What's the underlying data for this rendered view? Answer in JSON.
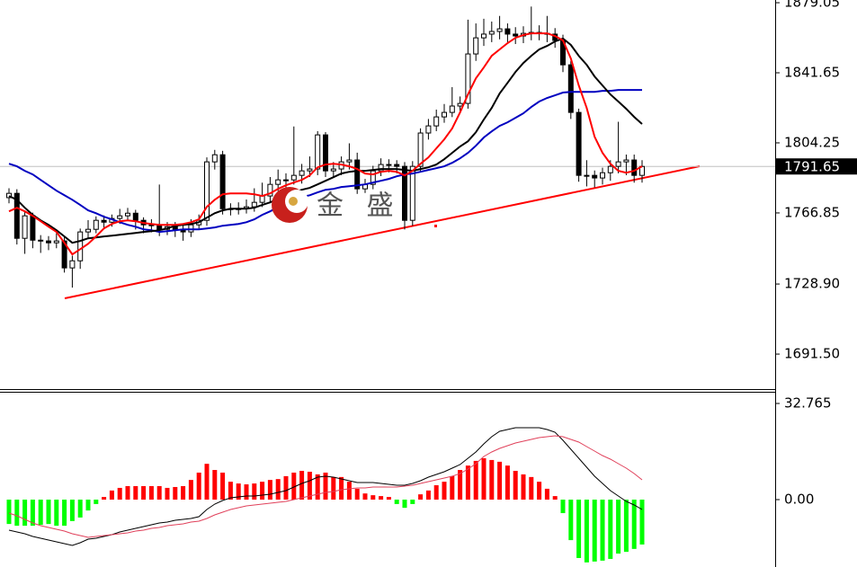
{
  "chart_data": [
    {
      "type": "candlestick",
      "watermark": "金 盛",
      "last_price": 1791.65,
      "up_color": "#ffffff",
      "down_color": "#000000",
      "edge_color": "#000000",
      "ylim": [
        1673.3,
        1880.5
      ],
      "yticks": [
        1879.05,
        1841.65,
        1804.25,
        1766.85,
        {
          "value": 1728.9,
          "label": "1728.90"
        },
        {
          "value": 1691.5,
          "label": "1691.50"
        }
      ],
      "open": [
        1775.0,
        1777.3,
        1753.3,
        1765.3,
        1752.3,
        1751.9,
        1750.9,
        1751.9,
        1737.5,
        1741.3,
        1756.7,
        1758.1,
        1762.9,
        1761.9,
        1763.9,
        1765.3,
        1766.7,
        1762.9,
        1760.5,
        1760.5,
        1758.1,
        1759.5,
        1758.1,
        1756.7,
        1760.5,
        1762.9,
        1794.1,
        1797.9,
        1769.1,
        1768.7,
        1769.1,
        1770.1,
        1772.5,
        1775.9,
        1782.1,
        1784.5,
        1784.5,
        1786.9,
        1789.3,
        1790.3,
        1808.5,
        1789.3,
        1790.3,
        1794.1,
        1795.1,
        1779.7,
        1782.1,
        1789.3,
        1792.7,
        1792.7,
        1791.7,
        1762.9,
        1791.7,
        1809.5,
        1813.3,
        1818.1,
        1820.5,
        1823.9,
        1825.3,
        1851.7,
        1860.3,
        1862.3,
        1863.7,
        1865.1,
        1862.3,
        1861.3,
        1862.7,
        1863.2,
        1862.7,
        1862.3,
        1858.9,
        1845.9,
        1820.5,
        1786.9,
        1786.9,
        1785.5,
        1788.3,
        1791.7,
        1794.1,
        1795.1,
        1786.9
      ],
      "high": [
        1780.0,
        1779.5,
        1767.5,
        1767.0,
        1755.0,
        1754.5,
        1756.0,
        1754.0,
        1744.0,
        1758.5,
        1763.0,
        1765.0,
        1765.5,
        1766.0,
        1769.0,
        1769.5,
        1768.5,
        1764.5,
        1763.5,
        1782.0,
        1762.0,
        1762.0,
        1761.0,
        1763.5,
        1766.0,
        1796.5,
        1800.5,
        1800.0,
        1772.0,
        1772.5,
        1774.0,
        1780.0,
        1783.0,
        1786.0,
        1790.0,
        1788.0,
        1813.0,
        1793.0,
        1797.0,
        1810.5,
        1810.0,
        1794.0,
        1797.0,
        1804.0,
        1799.0,
        1785.0,
        1792.0,
        1796.0,
        1795.5,
        1795.0,
        1794.0,
        1794.5,
        1812.0,
        1817.0,
        1822.0,
        1825.0,
        1834.0,
        1829.0,
        1870.0,
        1868.0,
        1870.5,
        1869.0,
        1872.0,
        1868.0,
        1866.0,
        1866.5,
        1877.0,
        1867.0,
        1872.0,
        1865.5,
        1862.0,
        1848.0,
        1822.5,
        1795.0,
        1789.5,
        1791.0,
        1795.0,
        1815.5,
        1798.0,
        1798.0,
        1795.0
      ],
      "low": [
        1772.0,
        1750.0,
        1745.0,
        1748.0,
        1745.5,
        1747.0,
        1748.0,
        1735.0,
        1727.0,
        1737.0,
        1753.5,
        1756.0,
        1759.0,
        1759.5,
        1761.0,
        1762.5,
        1758.0,
        1756.0,
        1756.5,
        1754.5,
        1755.0,
        1754.0,
        1752.0,
        1754.0,
        1758.5,
        1760.0,
        1790.0,
        1766.0,
        1765.5,
        1766.0,
        1766.5,
        1767.5,
        1770.0,
        1772.0,
        1778.5,
        1779.0,
        1782.0,
        1782.5,
        1786.0,
        1787.0,
        1786.0,
        1785.5,
        1787.0,
        1790.0,
        1777.0,
        1777.5,
        1779.5,
        1786.5,
        1788.5,
        1788.0,
        1758.0,
        1760.0,
        1789.0,
        1806.0,
        1810.5,
        1815.0,
        1818.0,
        1820.0,
        1822.5,
        1848.0,
        1856.0,
        1858.0,
        1859.5,
        1858.0,
        1857.0,
        1857.5,
        1859.0,
        1859.0,
        1858.0,
        1855.0,
        1842.0,
        1817.0,
        1783.5,
        1781.0,
        1780.5,
        1782.0,
        1784.0,
        1788.0,
        1787.0,
        1783.0,
        1783.0
      ],
      "close": [
        1777.3,
        1753.3,
        1765.3,
        1752.3,
        1751.9,
        1750.9,
        1751.9,
        1737.5,
        1741.3,
        1756.7,
        1758.1,
        1762.9,
        1761.9,
        1763.9,
        1765.3,
        1766.7,
        1762.9,
        1760.5,
        1760.5,
        1758.1,
        1759.5,
        1758.1,
        1756.7,
        1760.5,
        1762.9,
        1794.1,
        1797.9,
        1769.1,
        1768.7,
        1769.1,
        1770.1,
        1772.5,
        1775.9,
        1782.1,
        1784.5,
        1784.5,
        1786.9,
        1789.3,
        1790.3,
        1808.5,
        1789.3,
        1790.3,
        1794.1,
        1795.1,
        1779.7,
        1782.1,
        1789.3,
        1792.7,
        1792.7,
        1791.7,
        1762.9,
        1791.7,
        1809.5,
        1813.3,
        1818.1,
        1820.5,
        1823.9,
        1825.3,
        1851.7,
        1860.3,
        1862.3,
        1863.7,
        1865.1,
        1862.3,
        1861.3,
        1862.7,
        1863.2,
        1862.7,
        1862.3,
        1858.9,
        1845.9,
        1820.5,
        1786.9,
        1786.9,
        1785.5,
        1788.3,
        1791.7,
        1794.1,
        1795.1,
        1786.9,
        1791.65
      ],
      "series": [
        {
          "color": "#0000c0",
          "values": [
            1793.1,
            1791.7,
            1789.3,
            1787.4,
            1784.5,
            1781.6,
            1778.7,
            1776.3,
            1773.9,
            1771.1,
            1768.2,
            1766.7,
            1764.8,
            1763.4,
            1761.9,
            1760.5,
            1759.5,
            1758.1,
            1757.6,
            1756.7,
            1757.1,
            1757.6,
            1758.1,
            1758.1,
            1758.1,
            1758.6,
            1759.1,
            1760.0,
            1760.5,
            1761.0,
            1761.9,
            1763.4,
            1765.8,
            1767.7,
            1770.1,
            1772.0,
            1773.9,
            1775.4,
            1776.3,
            1777.8,
            1779.2,
            1779.7,
            1780.7,
            1781.1,
            1781.6,
            1782.1,
            1783.1,
            1784.0,
            1785.0,
            1786.4,
            1787.4,
            1787.9,
            1788.8,
            1789.8,
            1790.7,
            1791.7,
            1793.6,
            1796.0,
            1798.9,
            1802.7,
            1807.1,
            1810.4,
            1813.3,
            1815.2,
            1817.6,
            1820.0,
            1823.4,
            1826.3,
            1828.2,
            1829.6,
            1831.1,
            1831.5,
            1831.5,
            1831.5,
            1831.5,
            1832.0,
            1832.0,
            1832.5,
            1832.5,
            1832.5,
            1832.5
          ]
        },
        {
          "color": "#000000",
          "values": [
            1775.9,
            1773.9,
            1769.6,
            1765.8,
            1762.9,
            1760.5,
            1757.6,
            1754.3,
            1750.9,
            1751.9,
            1753.3,
            1753.8,
            1754.3,
            1754.7,
            1755.2,
            1755.7,
            1756.2,
            1756.7,
            1757.1,
            1757.6,
            1758.6,
            1760.0,
            1760.5,
            1761.0,
            1761.9,
            1764.3,
            1766.7,
            1768.2,
            1769.1,
            1769.1,
            1769.1,
            1769.6,
            1771.1,
            1772.5,
            1774.4,
            1776.3,
            1777.8,
            1779.2,
            1780.2,
            1782.1,
            1784.0,
            1785.9,
            1787.9,
            1788.8,
            1789.3,
            1789.3,
            1789.8,
            1790.3,
            1790.3,
            1790.3,
            1789.8,
            1789.3,
            1790.3,
            1791.2,
            1792.7,
            1795.5,
            1798.9,
            1802.3,
            1805.1,
            1809.9,
            1816.7,
            1822.9,
            1830.6,
            1836.3,
            1842.1,
            1846.9,
            1850.7,
            1854.1,
            1856.0,
            1858.4,
            1859.9,
            1856.5,
            1850.7,
            1845.9,
            1839.7,
            1834.9,
            1830.1,
            1826.3,
            1822.4,
            1818.1,
            1814.3
          ]
        },
        {
          "color": "#ff0000",
          "values": [
            1767.7,
            1769.6,
            1767.7,
            1765.3,
            1762.4,
            1759.5,
            1756.7,
            1750.9,
            1744.7,
            1747.5,
            1750.4,
            1754.3,
            1758.6,
            1761.0,
            1762.4,
            1762.9,
            1762.4,
            1761.5,
            1761.0,
            1760.5,
            1760.5,
            1760.5,
            1761.0,
            1761.9,
            1763.4,
            1770.1,
            1773.9,
            1776.8,
            1777.3,
            1777.3,
            1777.3,
            1776.8,
            1775.9,
            1777.3,
            1779.7,
            1781.6,
            1783.1,
            1784.5,
            1786.9,
            1791.2,
            1792.7,
            1793.1,
            1792.7,
            1791.7,
            1790.3,
            1787.9,
            1787.4,
            1788.8,
            1789.3,
            1788.8,
            1786.9,
            1789.3,
            1793.1,
            1796.5,
            1801.3,
            1806.1,
            1811.9,
            1820.5,
            1830.1,
            1838.7,
            1844.5,
            1850.7,
            1854.1,
            1857.5,
            1860.3,
            1861.8,
            1862.7,
            1862.7,
            1862.7,
            1861.3,
            1858.9,
            1849.3,
            1834.9,
            1822.9,
            1807.5,
            1798.9,
            1793.1,
            1789.3,
            1788.3,
            1789.3,
            1791.7
          ]
        }
      ]
    },
    {
      "type": "bar",
      "up_color": "#ff0000",
      "down_color": "#00ff00",
      "ylim": [
        -22.96,
        36.44
      ],
      "yticks": [
        32.765,
        {
          "value": 0,
          "label": "0.00"
        }
      ],
      "values": [
        -8.3,
        -8.9,
        -8.9,
        -8.9,
        -8.6,
        -8.3,
        -8.9,
        -8.9,
        -7.3,
        -6.1,
        -3.7,
        -1.5,
        0.9,
        3.1,
        4.0,
        4.6,
        4.6,
        4.6,
        4.6,
        4.6,
        4.0,
        4.3,
        4.6,
        6.7,
        9.2,
        12.2,
        10.1,
        9.2,
        6.1,
        5.5,
        5.2,
        5.5,
        6.1,
        6.7,
        7.0,
        8.0,
        9.2,
        9.8,
        9.5,
        8.6,
        9.2,
        7.7,
        7.7,
        6.1,
        3.7,
        2.1,
        1.5,
        1.2,
        0.9,
        -1.5,
        -2.8,
        -1.5,
        1.8,
        3.1,
        4.9,
        6.1,
        8.0,
        10.1,
        11.6,
        13.2,
        14.1,
        13.5,
        12.9,
        11.6,
        9.8,
        8.6,
        7.7,
        6.1,
        3.7,
        1.2,
        -4.6,
        -13.8,
        -19.9,
        -21.4,
        -21.1,
        -20.8,
        -20.2,
        -18.4,
        -17.8,
        -16.8,
        -15.3
      ],
      "series": [
        {
          "color": "#000000",
          "values": [
            -10.41,
            -11.02,
            -11.64,
            -12.55,
            -13.17,
            -13.78,
            -14.39,
            -15.0,
            -15.62,
            -14.7,
            -13.47,
            -13.17,
            -12.55,
            -11.94,
            -11.02,
            -10.41,
            -9.8,
            -9.19,
            -8.57,
            -7.96,
            -7.65,
            -7.04,
            -6.74,
            -6.43,
            -5.82,
            -3.37,
            -1.53,
            -0.31,
            0.61,
            0.92,
            1.22,
            1.22,
            1.53,
            1.84,
            2.45,
            3.06,
            4.29,
            5.51,
            6.43,
            7.65,
            7.96,
            7.65,
            7.04,
            6.43,
            5.82,
            5.82,
            5.82,
            5.51,
            5.21,
            4.9,
            4.9,
            5.51,
            6.43,
            7.65,
            8.57,
            9.49,
            10.72,
            11.94,
            14.08,
            16.23,
            18.98,
            21.43,
            23.27,
            23.88,
            24.49,
            24.49,
            24.49,
            24.49,
            23.88,
            22.96,
            20.21,
            17.15,
            14.08,
            11.02,
            7.96,
            5.51,
            3.06,
            1.22,
            -0.61,
            -1.84,
            -3.37
          ]
        },
        {
          "color": "#e0405a",
          "values": [
            -4.59,
            -5.51,
            -6.74,
            -7.96,
            -8.88,
            -9.49,
            -10.1,
            -10.72,
            -11.63,
            -12.25,
            -12.86,
            -12.55,
            -12.25,
            -11.94,
            -11.63,
            -11.33,
            -10.72,
            -10.41,
            -9.8,
            -9.49,
            -8.88,
            -8.57,
            -8.27,
            -7.65,
            -7.35,
            -6.43,
            -5.21,
            -4.29,
            -3.37,
            -2.76,
            -2.14,
            -1.84,
            -1.53,
            -1.22,
            -0.92,
            -0.61,
            0,
            0.61,
            1.22,
            1.84,
            2.45,
            2.76,
            3.37,
            3.67,
            3.98,
            3.98,
            4.29,
            4.29,
            4.29,
            4.29,
            4.59,
            4.9,
            5.51,
            6.12,
            6.74,
            7.35,
            7.96,
            8.88,
            10.41,
            12.25,
            14.7,
            16.23,
            17.45,
            18.37,
            19.29,
            19.9,
            20.51,
            21.13,
            21.43,
            21.74,
            21.43,
            20.51,
            19.6,
            18.07,
            16.54,
            15.0,
            13.78,
            12.25,
            10.72,
            8.88,
            6.74
          ]
        }
      ]
    }
  ]
}
